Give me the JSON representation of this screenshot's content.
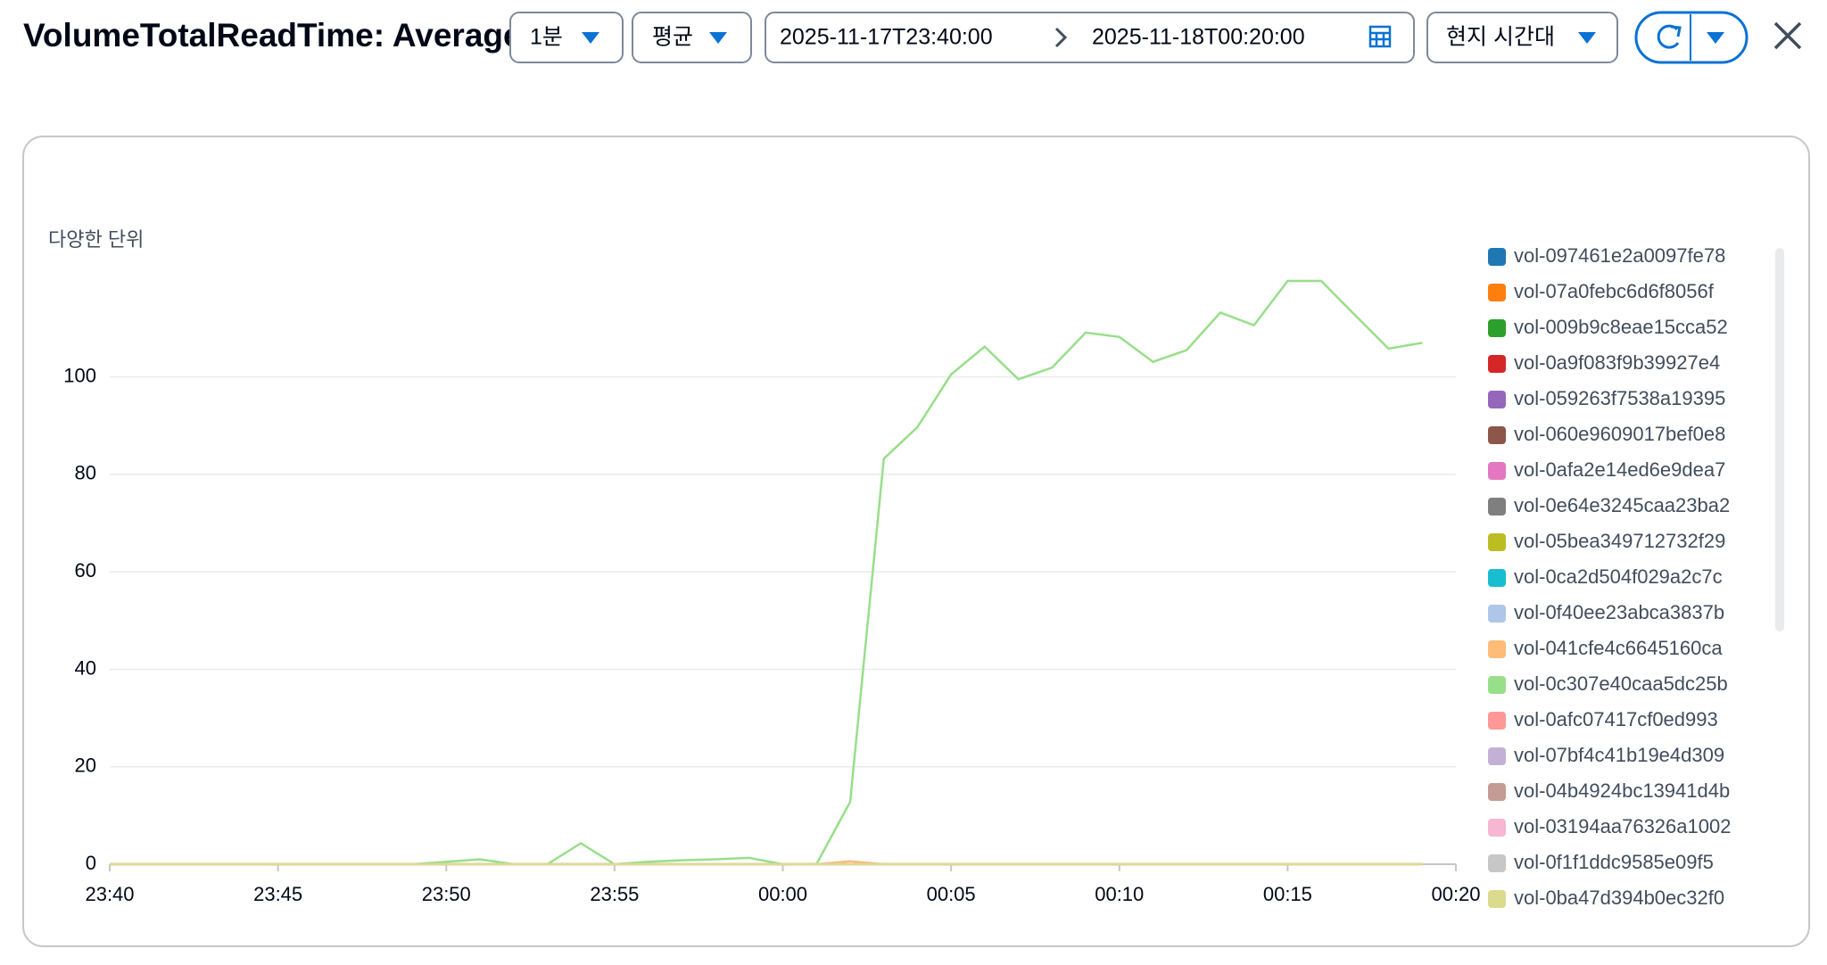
{
  "controls": {
    "period": "1분",
    "statistic": "평균",
    "start": "2025-11-17T23:40:00",
    "end": "2025-11-18T00:20:00",
    "timezone": "현지 시간대"
  },
  "chart_data": {
    "type": "line",
    "title": "VolumeTotalReadTime: Average",
    "y_label": "다양한 단위",
    "x": [
      0,
      1,
      2,
      3,
      4,
      5,
      6,
      7,
      8,
      9,
      10,
      11,
      12,
      13,
      14,
      15,
      16,
      17,
      18,
      19,
      20,
      21,
      22,
      23,
      24,
      25,
      26,
      27,
      28,
      29,
      30,
      31,
      32,
      33,
      34,
      35,
      36,
      37,
      38,
      39
    ],
    "xlim": [
      0,
      40
    ],
    "xticks": [
      {
        "value": 0,
        "label": "23:40"
      },
      {
        "value": 5,
        "label": "23:45"
      },
      {
        "value": 10,
        "label": "23:50"
      },
      {
        "value": 15,
        "label": "23:55"
      },
      {
        "value": 20,
        "label": "00:00"
      },
      {
        "value": 25,
        "label": "00:05"
      },
      {
        "value": 30,
        "label": "00:10"
      },
      {
        "value": 35,
        "label": "00:15"
      },
      {
        "value": 40,
        "label": "00:20"
      }
    ],
    "ylim": [
      0,
      125
    ],
    "yticks": [
      0,
      20,
      40,
      60,
      80,
      100
    ],
    "grid": true,
    "legend": "right",
    "series": [
      {
        "name": "vol-097461e2a0097fe78",
        "color": "#1f77b4",
        "values": [
          0,
          0,
          0,
          0,
          0,
          0,
          0,
          0,
          0,
          0,
          0,
          0,
          0,
          0,
          0,
          0,
          0,
          0,
          0,
          0,
          0,
          0,
          0,
          0,
          0,
          0,
          0,
          0,
          0,
          0,
          0,
          0,
          0,
          0,
          0,
          0,
          0,
          0,
          0,
          0
        ]
      },
      {
        "name": "vol-07a0febc6d6f8056f",
        "color": "#ff7f0e",
        "values": [
          0,
          0,
          0,
          0,
          0,
          0,
          0,
          0,
          0,
          0,
          0,
          0,
          0,
          0,
          0,
          0,
          0,
          0,
          0,
          0,
          0,
          0,
          0,
          0,
          0,
          0,
          0,
          0,
          0,
          0,
          0,
          0,
          0,
          0,
          0,
          0,
          0,
          0,
          0,
          0
        ]
      },
      {
        "name": "vol-009b9c8eae15cca52",
        "color": "#2ca02c",
        "values": [
          0,
          0,
          0,
          0,
          0,
          0,
          0,
          0,
          0,
          0,
          0,
          0,
          0,
          0,
          0,
          0,
          0,
          0,
          0,
          0,
          0,
          0,
          0,
          0,
          0,
          0,
          0,
          0,
          0,
          0,
          0,
          0,
          0,
          0,
          0,
          0,
          0,
          0,
          0,
          0
        ]
      },
      {
        "name": "vol-0a9f083f9b39927e4",
        "color": "#d62728",
        "values": [
          0,
          0,
          0,
          0,
          0,
          0,
          0,
          0,
          0,
          0,
          0,
          0,
          0,
          0,
          0,
          0,
          0,
          0,
          0,
          0,
          0,
          0,
          0,
          0,
          0,
          0,
          0,
          0,
          0,
          0,
          0,
          0,
          0,
          0,
          0,
          0,
          0,
          0,
          0,
          0
        ]
      },
      {
        "name": "vol-059263f7538a19395",
        "color": "#9467bd",
        "values": [
          0,
          0,
          0,
          0,
          0,
          0,
          0,
          0,
          0,
          0,
          0,
          0,
          0,
          0,
          0,
          0,
          0,
          0,
          0,
          0,
          0,
          0,
          0,
          0,
          0,
          0,
          0,
          0,
          0,
          0,
          0,
          0,
          0,
          0,
          0,
          0,
          0,
          0,
          0,
          0
        ]
      },
      {
        "name": "vol-060e9609017bef0e8",
        "color": "#8c564b",
        "values": [
          0,
          0,
          0,
          0,
          0,
          0,
          0,
          0,
          0,
          0,
          0,
          0,
          0,
          0,
          0,
          0,
          0,
          0,
          0,
          0,
          0,
          0,
          0,
          0,
          0,
          0,
          0,
          0,
          0,
          0,
          0,
          0,
          0,
          0,
          0,
          0,
          0,
          0,
          0,
          0
        ]
      },
      {
        "name": "vol-0afa2e14ed6e9dea7",
        "color": "#e377c2",
        "values": [
          0,
          0,
          0,
          0,
          0,
          0,
          0,
          0,
          0,
          0,
          0,
          0,
          0,
          0,
          0,
          0,
          0,
          0,
          0,
          0,
          0,
          0,
          0,
          0,
          0,
          0,
          0,
          0,
          0,
          0,
          0,
          0,
          0,
          0,
          0,
          0,
          0,
          0,
          0,
          0
        ]
      },
      {
        "name": "vol-0e64e3245caa23ba2",
        "color": "#7f7f7f",
        "values": [
          0,
          0,
          0,
          0,
          0,
          0,
          0,
          0,
          0,
          0,
          0,
          0,
          0,
          0,
          0,
          0,
          0,
          0,
          0,
          0,
          0,
          0,
          0,
          0,
          0,
          0,
          0,
          0,
          0,
          0,
          0,
          0,
          0,
          0,
          0,
          0,
          0,
          0,
          0,
          0
        ]
      },
      {
        "name": "vol-05bea349712732f29",
        "color": "#bcbd22",
        "values": [
          0,
          0,
          0,
          0,
          0,
          0,
          0,
          0,
          0,
          0,
          0,
          0,
          0,
          0,
          0,
          0,
          0,
          0,
          0,
          0,
          0,
          0,
          0,
          0,
          0,
          0,
          0,
          0,
          0,
          0,
          0,
          0,
          0,
          0,
          0,
          0,
          0,
          0,
          0,
          0
        ]
      },
      {
        "name": "vol-0ca2d504f029a2c7c",
        "color": "#17becf",
        "values": [
          0,
          0,
          0,
          0,
          0,
          0,
          0,
          0,
          0,
          0,
          0,
          0,
          0,
          0,
          0,
          0,
          0,
          0,
          0,
          0,
          0,
          0,
          0,
          0,
          0,
          0,
          0,
          0,
          0,
          0,
          0,
          0,
          0,
          0,
          0,
          0,
          0,
          0,
          0,
          0
        ]
      },
      {
        "name": "vol-0f40ee23abca3837b",
        "color": "#aec7e8",
        "values": [
          0,
          0,
          0,
          0,
          0,
          0,
          0,
          0,
          0,
          0,
          0,
          0,
          0,
          0,
          0,
          0,
          0,
          0,
          0,
          0,
          0,
          0,
          0,
          0,
          0,
          0,
          0,
          0,
          0,
          0,
          0,
          0,
          0,
          0,
          0,
          0,
          0,
          0,
          0,
          0
        ]
      },
      {
        "name": "vol-041cfe4c6645160ca",
        "color": "#ffbb78",
        "values": [
          0,
          0,
          0,
          0,
          0,
          0,
          0,
          0,
          0,
          0,
          0,
          0,
          0,
          0,
          0,
          0,
          0,
          0,
          0,
          0,
          0,
          0,
          0.6,
          0,
          0,
          0,
          0,
          0,
          0,
          0,
          0,
          0,
          0,
          0,
          0,
          0,
          0,
          0,
          0,
          0
        ]
      },
      {
        "name": "vol-0c307e40caa5dc25b",
        "color": "#98df8a",
        "values": [
          0,
          0,
          0,
          0,
          0,
          0,
          0,
          0,
          0,
          0,
          0.5,
          1,
          0,
          0,
          4.3,
          0,
          0.5,
          0.8,
          1,
          1.3,
          0,
          0,
          12.8,
          83.2,
          89.7,
          100.5,
          106.2,
          99.5,
          101.9,
          109.1,
          108.2,
          103.1,
          105.5,
          113.2,
          110.6,
          119.7,
          119.7,
          112.7,
          105.8,
          107.0
        ]
      },
      {
        "name": "vol-0afc07417cf0ed993",
        "color": "#ff9896",
        "values": [
          0,
          0,
          0,
          0,
          0,
          0,
          0,
          0,
          0,
          0,
          0,
          0,
          0,
          0,
          0,
          0,
          0,
          0,
          0,
          0,
          0,
          0,
          0,
          0,
          0,
          0,
          0,
          0,
          0,
          0,
          0,
          0,
          0,
          0,
          0,
          0,
          0,
          0,
          0,
          0
        ]
      },
      {
        "name": "vol-07bf4c41b19e4d309",
        "color": "#c5b0d5",
        "values": [
          0,
          0,
          0,
          0,
          0,
          0,
          0,
          0,
          0,
          0,
          0,
          0,
          0,
          0,
          0,
          0,
          0,
          0,
          0,
          0,
          0,
          0,
          0,
          0,
          0,
          0,
          0,
          0,
          0,
          0,
          0,
          0,
          0,
          0,
          0,
          0,
          0,
          0,
          0,
          0
        ]
      },
      {
        "name": "vol-04b4924bc13941d4b",
        "color": "#c49c94",
        "values": [
          0,
          0,
          0,
          0,
          0,
          0,
          0,
          0,
          0,
          0,
          0,
          0,
          0,
          0,
          0,
          0,
          0,
          0,
          0,
          0,
          0,
          0,
          0,
          0,
          0,
          0,
          0,
          0,
          0,
          0,
          0,
          0,
          0,
          0,
          0,
          0,
          0,
          0,
          0,
          0
        ]
      },
      {
        "name": "vol-03194aa76326a1002",
        "color": "#f7b6d2",
        "values": [
          0,
          0,
          0,
          0,
          0,
          0,
          0,
          0,
          0,
          0,
          0,
          0,
          0,
          0,
          0,
          0,
          0,
          0,
          0,
          0,
          0,
          0,
          0,
          0,
          0,
          0,
          0,
          0,
          0,
          0,
          0,
          0,
          0,
          0,
          0,
          0,
          0,
          0,
          0,
          0
        ]
      },
      {
        "name": "vol-0f1f1ddc9585e09f5",
        "color": "#c7c7c7",
        "values": [
          0,
          0,
          0,
          0,
          0,
          0,
          0,
          0,
          0,
          0,
          0,
          0,
          0,
          0,
          0,
          0,
          0,
          0,
          0,
          0,
          0,
          0,
          0,
          0,
          0,
          0,
          0,
          0,
          0,
          0,
          0,
          0,
          0,
          0,
          0,
          0,
          0,
          0,
          0,
          0
        ]
      },
      {
        "name": "vol-0ba47d394b0ec32f0",
        "color": "#dbdb8d",
        "values": [
          0,
          0,
          0,
          0,
          0,
          0,
          0,
          0,
          0,
          0,
          0,
          0,
          0,
          0,
          0,
          0,
          0,
          0,
          0,
          0,
          0,
          0,
          0,
          0,
          0,
          0,
          0,
          0,
          0,
          0,
          0,
          0,
          0,
          0,
          0,
          0,
          0,
          0,
          0,
          0
        ]
      }
    ]
  }
}
